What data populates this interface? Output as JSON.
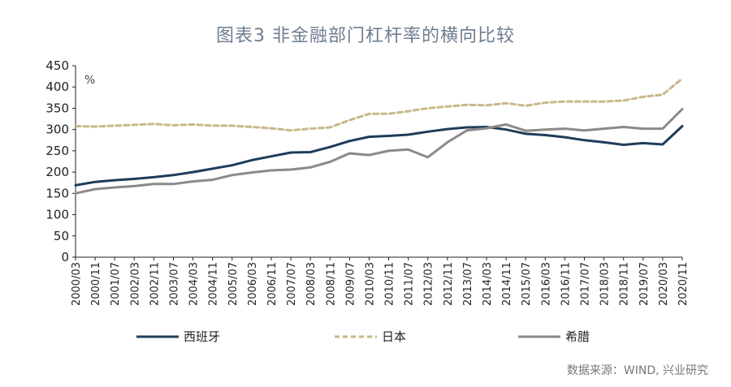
{
  "title": "图表3  非金融部门杠杆率的横向比较",
  "source": "数据来源：WIND, 兴业研究",
  "colors": {
    "spain": "#1f3c5a",
    "japan": "#c8b88a",
    "greece": "#8a8a8a",
    "axis": "#222222"
  },
  "chart_data": {
    "type": "line",
    "ylabel": "%",
    "ylim": [
      0,
      450
    ],
    "yticks": [
      0,
      50,
      100,
      150,
      200,
      250,
      300,
      350,
      400,
      450
    ],
    "grid": false,
    "legend_position": "bottom",
    "x": [
      "2000/03",
      "2000/11",
      "2001/07",
      "2002/03",
      "2002/11",
      "2003/07",
      "2004/03",
      "2004/11",
      "2005/07",
      "2006/03",
      "2006/11",
      "2007/07",
      "2008/03",
      "2008/11",
      "2009/07",
      "2010/03",
      "2010/11",
      "2011/07",
      "2012/03",
      "2012/11",
      "2013/07",
      "2014/03",
      "2014/11",
      "2015/07",
      "2016/03",
      "2016/11",
      "2017/07",
      "2018/03",
      "2018/11",
      "2019/07",
      "2020/03",
      "2020/11"
    ],
    "series": [
      {
        "name": "西班牙",
        "style": "solid",
        "color": "#1f3c5a",
        "values": [
          169,
          177,
          181,
          184,
          188,
          193,
          200,
          208,
          216,
          228,
          237,
          246,
          247,
          259,
          273,
          283,
          285,
          288,
          295,
          301,
          305,
          306,
          300,
          290,
          287,
          282,
          275,
          270,
          264,
          268,
          265,
          308
        ]
      },
      {
        "name": "日本",
        "style": "dashed",
        "color": "#c8b88a",
        "values": [
          308,
          307,
          309,
          311,
          313,
          310,
          312,
          309,
          309,
          306,
          303,
          298,
          302,
          305,
          322,
          337,
          337,
          343,
          350,
          354,
          358,
          357,
          362,
          356,
          363,
          366,
          366,
          366,
          368,
          377,
          382,
          420
        ]
      },
      {
        "name": "希腊",
        "style": "solid",
        "color": "#8a8a8a",
        "values": [
          150,
          160,
          164,
          167,
          172,
          172,
          178,
          182,
          193,
          199,
          204,
          206,
          211,
          224,
          244,
          240,
          250,
          253,
          235,
          270,
          298,
          303,
          312,
          297,
          300,
          302,
          298,
          302,
          306,
          302,
          302,
          348
        ]
      }
    ]
  }
}
